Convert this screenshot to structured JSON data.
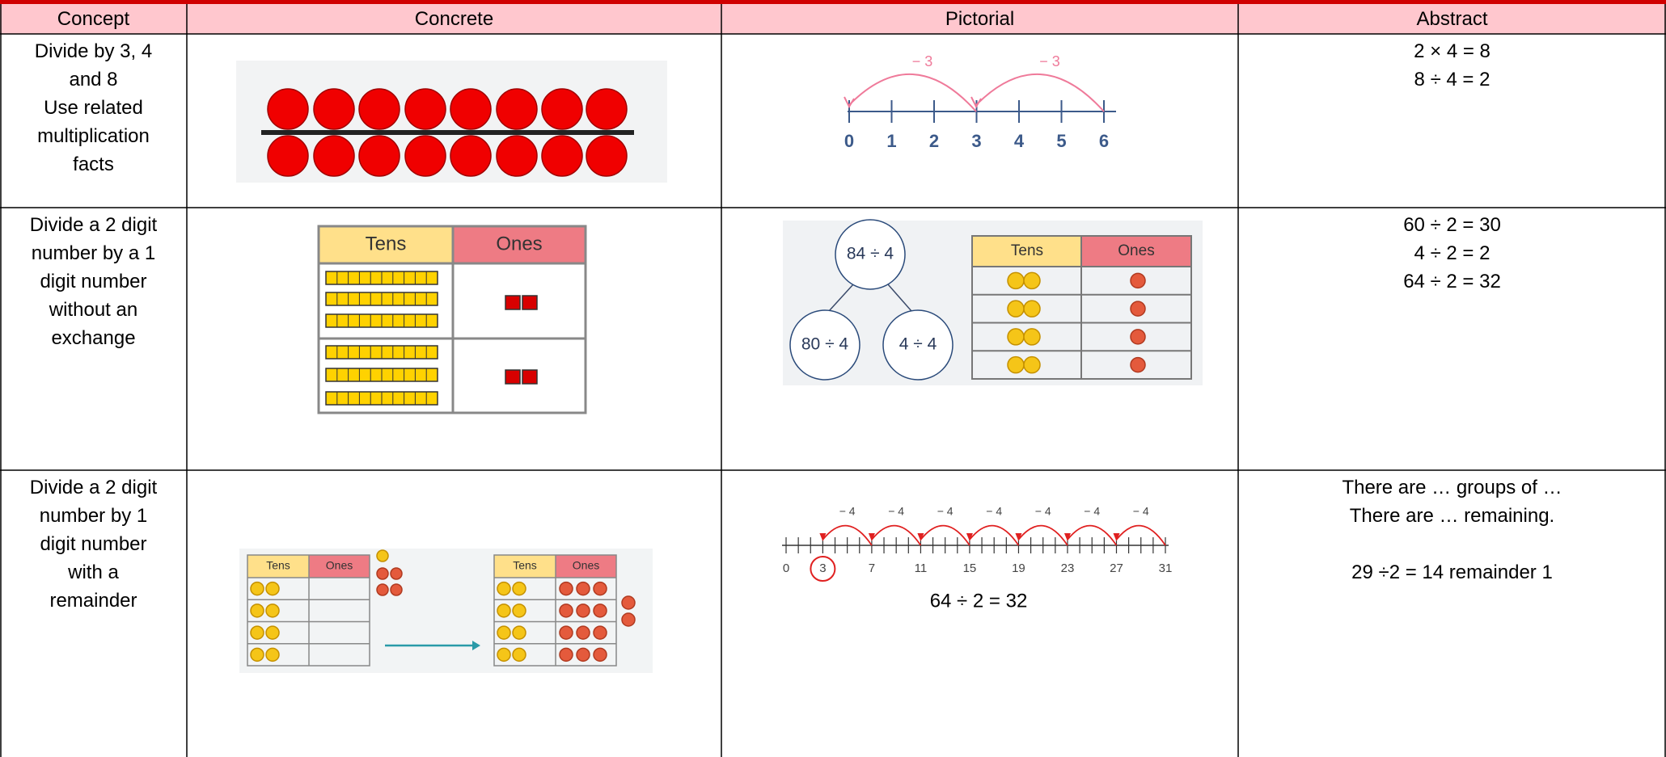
{
  "table": {
    "header": [
      "Concept",
      "Concrete",
      "Pictorial",
      "Abstract"
    ],
    "rows": [
      {
        "concept": [
          "Divide by 3, 4",
          "and 8",
          "Use related",
          "multiplication",
          "facts"
        ],
        "pictorial": {
          "jump_labels": [
            "− 3",
            "− 3"
          ],
          "ticks": [
            "0",
            "1",
            "2",
            "3",
            "4",
            "5",
            "6"
          ]
        },
        "abstract": [
          [
            "2 × 4 = 8",
            "8 ÷ 4 = 2"
          ]
        ]
      },
      {
        "concept": [
          "Divide a 2 digit",
          "number by a 1",
          "digit number",
          "without an",
          "exchange"
        ],
        "concrete": {
          "headers": [
            "Tens",
            "Ones"
          ]
        },
        "pictorial": {
          "bubbles": [
            "84 ÷ 4",
            "80 ÷ 4",
            "4 ÷ 4"
          ],
          "headers": [
            "Tens",
            "Ones"
          ]
        },
        "abstract": [
          [
            "60 ÷ 2 = 30",
            "4 ÷ 2 = 2",
            "64 ÷ 2 = 32"
          ]
        ]
      },
      {
        "concept": [
          "Divide a 2 digit",
          "number by 1",
          "digit number",
          "with a",
          "remainder"
        ],
        "concrete": {
          "headers": [
            "Tens",
            "Ones"
          ]
        },
        "pictorial": {
          "jump_labels": [
            "− 4",
            "− 4",
            "− 4",
            "− 4",
            "− 4",
            "− 4",
            "− 4"
          ],
          "ticks": [
            "0",
            "3",
            "7",
            "11",
            "15",
            "19",
            "23",
            "27",
            "31"
          ],
          "caption": "64 ÷ 2 = 32"
        },
        "abstract": [
          [
            "There are … groups of …",
            "There are … remaining."
          ],
          [
            "29 ÷2 = 14 remainder 1"
          ]
        ]
      }
    ]
  }
}
